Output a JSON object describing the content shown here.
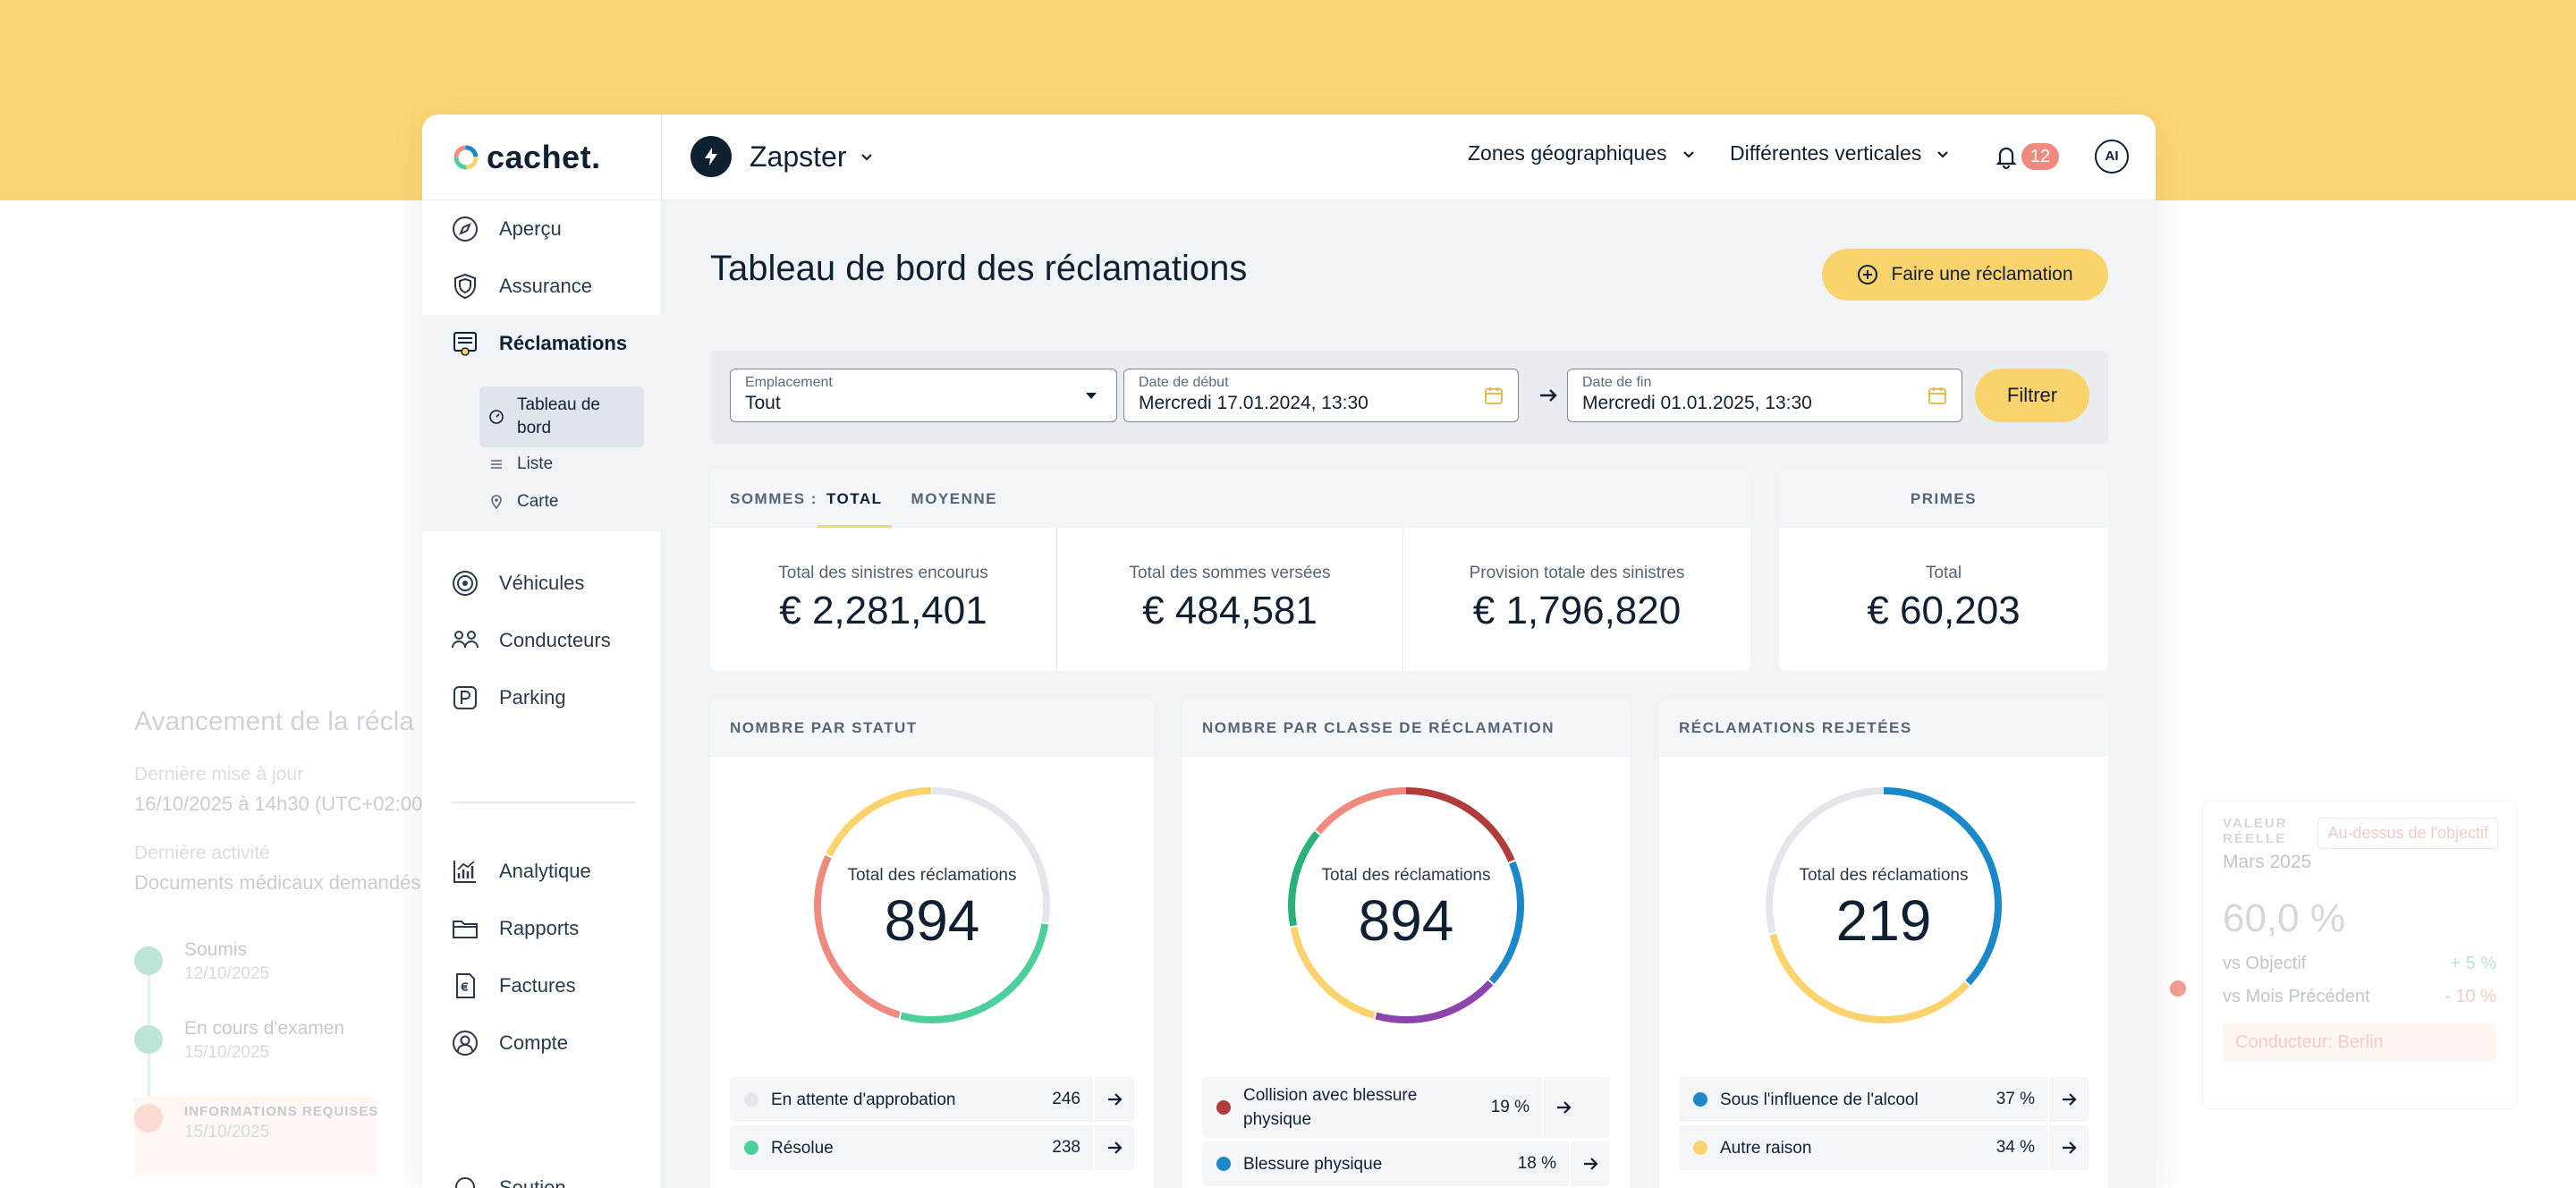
{
  "app": {
    "logo": "cachet.",
    "company": "Zapster",
    "menus": [
      "Zones géographiques",
      "Différentes verticales"
    ],
    "notifications": "12",
    "ai_label": "AI"
  },
  "sidebar": {
    "items": [
      {
        "label": "Aperçu",
        "icon": "compass-icon"
      },
      {
        "label": "Assurance",
        "icon": "shield-icon"
      },
      {
        "label": "Réclamations",
        "icon": "claims-icon"
      },
      {
        "label": "Véhicules",
        "icon": "wheel-icon"
      },
      {
        "label": "Conducteurs",
        "icon": "people-icon"
      },
      {
        "label": "Parking",
        "icon": "parking-icon"
      },
      {
        "label": "Analytique",
        "icon": "chart-icon"
      },
      {
        "label": "Rapports",
        "icon": "folder-icon"
      },
      {
        "label": "Factures",
        "icon": "invoice-icon"
      },
      {
        "label": "Compte",
        "icon": "user-icon"
      },
      {
        "label": "Soutien",
        "icon": "headset-icon"
      }
    ],
    "subitems": [
      {
        "label": "Tableau de bord",
        "icon": "dashboard-icon"
      },
      {
        "label": "Liste",
        "icon": "list-icon"
      },
      {
        "label": "Carte",
        "icon": "pin-icon"
      }
    ]
  },
  "page": {
    "title": "Tableau de bord des réclamations",
    "claim_button": "Faire une réclamation"
  },
  "filters": {
    "location_label": "Emplacement",
    "location_value": "Tout",
    "start_label": "Date de début",
    "start_value": "Mercredi 17.01.2024, 13:30",
    "end_label": "Date de fin",
    "end_value": "Mercredi 01.01.2025, 13:30",
    "button": "Filtrer"
  },
  "sums": {
    "prefix": "SOMMES :",
    "tab_total": "TOTAL",
    "tab_avg": "MOYENNE",
    "metrics": [
      {
        "label": "Total des sinistres encourus",
        "value": "€ 2,281,401"
      },
      {
        "label": "Total des sommes versées",
        "value": "€ 484,581"
      },
      {
        "label": "Provision totale des sinistres",
        "value": "€ 1,796,820"
      }
    ]
  },
  "premiums": {
    "title": "PRIMES",
    "label": "Total",
    "value": "€ 60,203"
  },
  "status_card": {
    "title": "NOMBRE PAR STATUT",
    "center_label": "Total des réclamations",
    "total": "894",
    "legend": [
      {
        "label": "En attente d'approbation",
        "value": "246",
        "color": "#e3e7ec"
      },
      {
        "label": "Résolue",
        "value": "238",
        "color": "#4ccf9a"
      }
    ]
  },
  "class_card": {
    "title": "NOMBRE PAR CLASSE DE RÉCLAMATION",
    "center_label": "Total des réclamations",
    "total": "894",
    "legend": [
      {
        "label": "Collision avec blessure physique",
        "value": "19 %",
        "color": "#b23b3b"
      },
      {
        "label": "Blessure physique",
        "value": "18 %",
        "color": "#1a88c9"
      }
    ]
  },
  "rejected_card": {
    "title": "RÉCLAMATIONS REJETÉES",
    "center_label": "Total des réclamations",
    "total": "219",
    "legend": [
      {
        "label": "Sous l'influence de l'alcool",
        "value": "37 %",
        "color": "#1a88c9"
      },
      {
        "label": "Autre raison",
        "value": "34 %",
        "color": "#fbd36d"
      }
    ]
  },
  "background": {
    "left_title": "Avancement de la récla",
    "updated_label": "Dernière mise à jour",
    "updated_value": "16/10/2025 à 14h30 (UTC+02:00",
    "activity_label": "Dernière activité",
    "activity_value": "Documents médicaux demandés",
    "steps": [
      {
        "label": "Soumis",
        "date": "12/10/2025"
      },
      {
        "label": "En cours d'examen",
        "date": "15/10/2025"
      },
      {
        "label": "INFORMATIONS REQUISES",
        "date": "15/10/2025"
      }
    ],
    "right_label": "VALEUR RÉELLE",
    "right_badge": "Au-dessus de l'objectif",
    "right_month": "Mars 2025",
    "right_value": "60,0 %",
    "vs_objective": "vs Objectif",
    "vs_objective_val": "+ 5 %",
    "vs_prev": "vs Mois Précédent",
    "vs_prev_val": "- 10 %",
    "driver": "Conducteur: Berlin"
  }
}
